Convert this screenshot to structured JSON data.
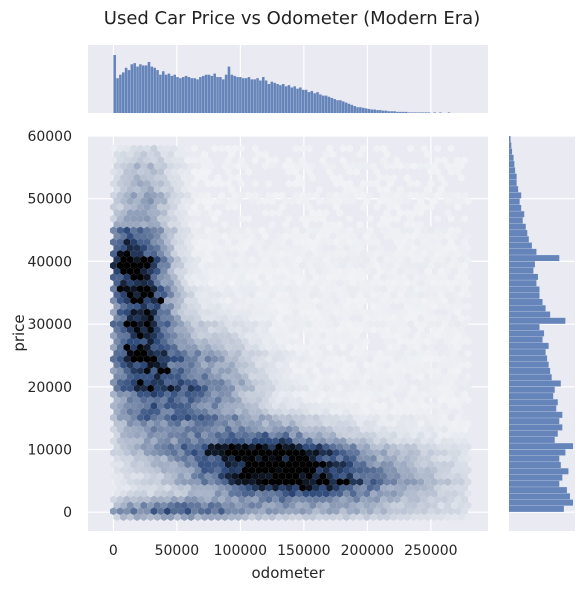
{
  "chart_data": {
    "type": "hexbin",
    "title": "Used Car Price vs Odometer (Modern Era)",
    "xlabel": "odometer",
    "ylabel": "price",
    "xlim": [
      -20000,
      295000
    ],
    "ylim": [
      -3000,
      60000
    ],
    "x_ticks": [
      0,
      50000,
      100000,
      150000,
      200000,
      250000
    ],
    "y_ticks": [
      0,
      10000,
      20000,
      30000,
      40000,
      50000,
      60000
    ],
    "grid": true,
    "colors": {
      "background": "#eaeaf2",
      "grid": "#ffffff",
      "hist": "#4c72b0",
      "hex_low": "#ffffff",
      "hex_high": "#000000",
      "hex_mid": "#2f4b7c"
    },
    "density_regions": [
      {
        "x": 22000,
        "y": 30000,
        "sx": 16000,
        "sy": 9500,
        "w": 0.95
      },
      {
        "x": 12000,
        "y": 40000,
        "sx": 12000,
        "sy": 3500,
        "w": 0.75
      },
      {
        "x": 60000,
        "y": 19000,
        "sx": 30000,
        "sy": 6000,
        "w": 0.55
      },
      {
        "x": 115000,
        "y": 8500,
        "sx": 38000,
        "sy": 3300,
        "w": 1.0
      },
      {
        "x": 150000,
        "y": 5500,
        "sx": 38000,
        "sy": 2800,
        "w": 0.7
      },
      {
        "x": 25000,
        "y": 52000,
        "sx": 16000,
        "sy": 5000,
        "w": 0.25
      },
      {
        "x": 50000,
        "y": 500,
        "sx": 40000,
        "sy": 1200,
        "w": 0.55
      },
      {
        "x": 200000,
        "y": 5000,
        "sx": 50000,
        "sy": 4000,
        "w": 0.25
      }
    ],
    "hotspots": [
      {
        "x": 8000,
        "y": 40000
      },
      {
        "x": 12000,
        "y": 30000
      },
      {
        "x": 10000,
        "y": 26500
      },
      {
        "x": 38000,
        "y": 34000
      },
      {
        "x": 40000,
        "y": 22500
      },
      {
        "x": 125000,
        "y": 7500
      },
      {
        "x": 140000,
        "y": 6500
      }
    ],
    "x_marginal": {
      "bin_width": 2250,
      "start": 0,
      "counts": [
        100,
        60,
        66,
        70,
        78,
        74,
        84,
        86,
        80,
        84,
        82,
        82,
        88,
        80,
        78,
        74,
        66,
        72,
        66,
        68,
        64,
        66,
        62,
        60,
        62,
        64,
        62,
        60,
        60,
        58,
        62,
        64,
        66,
        66,
        64,
        68,
        62,
        62,
        58,
        66,
        80,
        66,
        64,
        62,
        62,
        60,
        60,
        62,
        58,
        58,
        60,
        56,
        62,
        56,
        50,
        54,
        52,
        50,
        48,
        50,
        46,
        48,
        44,
        46,
        42,
        44,
        40,
        40,
        36,
        38,
        34,
        36,
        32,
        30,
        30,
        28,
        26,
        24,
        22,
        22,
        20,
        18,
        16,
        14,
        12,
        10,
        10,
        9,
        8,
        7,
        6,
        6,
        5,
        5,
        4,
        4,
        3,
        3,
        3,
        2,
        2,
        2,
        2,
        1,
        1,
        1,
        1,
        1,
        1,
        1,
        1,
        0,
        1,
        0,
        1,
        0,
        0,
        1,
        0,
        0,
        0,
        0,
        0,
        0
      ]
    },
    "y_marginal": {
      "bin_width": 1000,
      "start": 0,
      "counts": [
        72,
        84,
        80,
        76,
        66,
        70,
        78,
        68,
        66,
        74,
        84,
        60,
        64,
        70,
        66,
        70,
        62,
        64,
        58,
        60,
        68,
        56,
        54,
        52,
        50,
        48,
        52,
        44,
        46,
        40,
        74,
        54,
        48,
        44,
        40,
        40,
        36,
        38,
        32,
        34,
        66,
        36,
        30,
        26,
        24,
        22,
        18,
        20,
        16,
        14,
        16,
        12,
        10,
        10,
        8,
        7,
        6,
        4,
        3,
        2
      ]
    }
  }
}
